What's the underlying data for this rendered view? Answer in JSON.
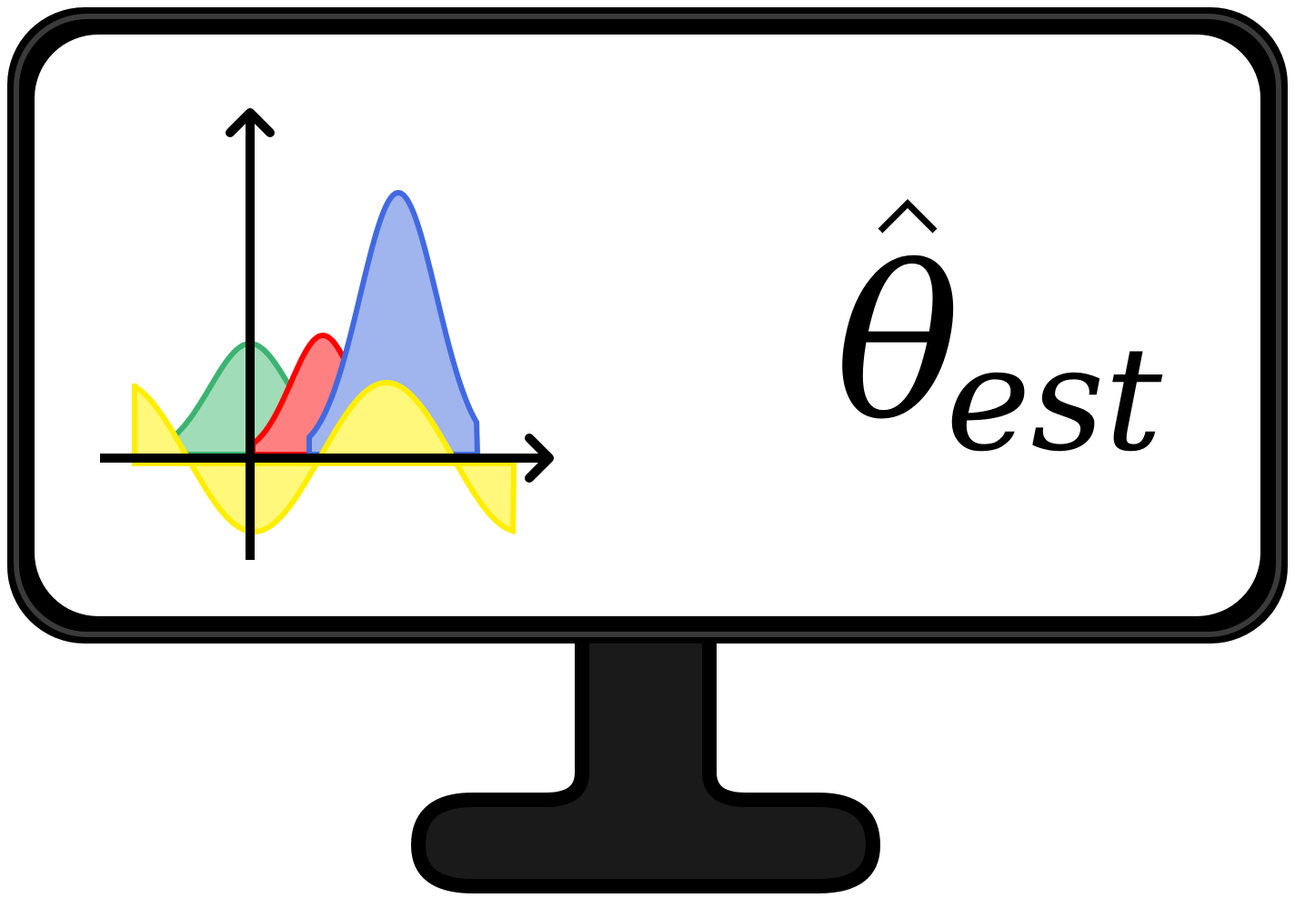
{
  "estimator": {
    "symbol": "θ",
    "hat": "^",
    "subscript": "est"
  },
  "colors": {
    "frame": "#000000",
    "bezel_inner": "#3a3a3a",
    "stand": "#1a1a1a",
    "screen": "#ffffff",
    "green_stroke": "#3cb371",
    "green_fill": "#a0dcb8",
    "red_stroke": "#ff0000",
    "red_fill": "#ff8080",
    "blue_stroke": "#4169e1",
    "blue_fill": "#a0b4ee",
    "yellow_stroke": "#ffee00",
    "yellow_fill": "#fff87a",
    "axis": "#000000"
  },
  "curve_icons": [
    "green-gaussian",
    "red-gaussian",
    "blue-gaussian",
    "yellow-sine-wave"
  ]
}
